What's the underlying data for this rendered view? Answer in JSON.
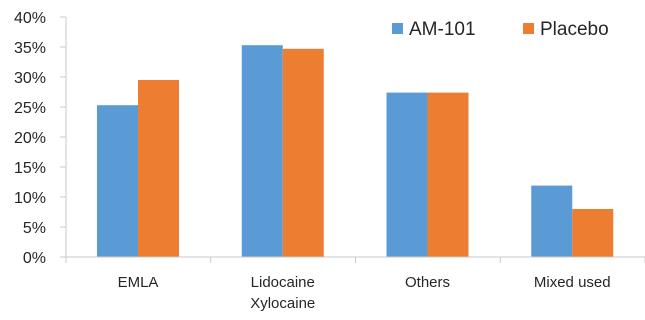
{
  "chart_data": {
    "type": "bar",
    "categories": [
      [
        "EMLA"
      ],
      [
        "Lidocaine",
        "Xylocaine"
      ],
      [
        "Others"
      ],
      [
        "Mixed used"
      ]
    ],
    "series": [
      {
        "name": "AM-101",
        "color": "#5B9BD5",
        "values": [
          25.3,
          35.3,
          27.4,
          11.9
        ]
      },
      {
        "name": "Placebo",
        "color": "#ED7D31",
        "values": [
          29.5,
          34.7,
          27.4,
          8.0
        ]
      }
    ],
    "y_ticks": [
      "0%",
      "5%",
      "10%",
      "15%",
      "20%",
      "25%",
      "30%",
      "35%",
      "40%"
    ],
    "ylim": [
      0,
      40
    ],
    "y_unit": "percent",
    "grid": false,
    "legend_position": "top-right",
    "title": "",
    "xlabel": "",
    "ylabel": ""
  }
}
